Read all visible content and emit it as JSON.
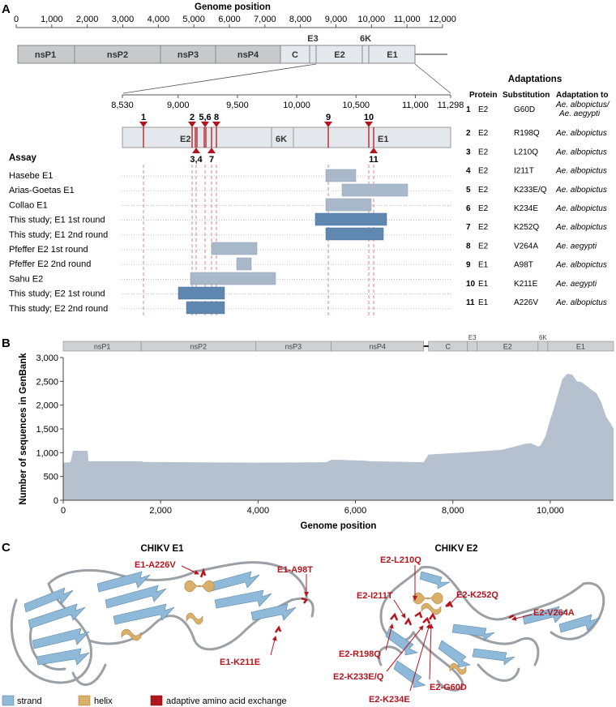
{
  "panels": {
    "a": "A",
    "b": "B",
    "c": "C"
  },
  "genome_axis": {
    "title": "Genome position",
    "ticks": [
      "0",
      "1,000",
      "2,000",
      "3,000",
      "4,000",
      "5,000",
      "6,000",
      "7,000",
      "8,000",
      "9,000",
      "10,000",
      "11,000",
      "12,000"
    ]
  },
  "genes": [
    "nsP1",
    "nsP2",
    "nsP3",
    "nsP4",
    "C",
    "E3",
    "E2",
    "6K",
    "E1"
  ],
  "zoom_axis": {
    "ticks": [
      "8,530",
      "9,000",
      "9,500",
      "10,000",
      "10,500",
      "11,000",
      "11,298"
    ]
  },
  "zoom_genes": {
    "e2": "E2",
    "k6": "6K",
    "e1": "E1"
  },
  "site_labels": [
    "1",
    "2",
    "5,6",
    "8",
    "9",
    "10",
    "3,4",
    "7",
    "11"
  ],
  "assay": {
    "heading": "Assay",
    "rows": [
      "Hasebe E1",
      "Arias-Goetas E1",
      "Collao E1",
      "This study; E1 1st round",
      "This study; E1 2nd round",
      "Pfeffer E2 1st round",
      "Pfeffer E2 2nd round",
      "Sahu E2",
      "This study; E2 1st round",
      "This study; E2 2nd round"
    ]
  },
  "adaptations": {
    "title": "Adaptations",
    "headers": {
      "protein": "Protein",
      "substitution": "Substitution",
      "adaptation": "Adaptation to"
    },
    "rows": [
      {
        "n": "1",
        "protein": "E2",
        "sub": "G60D",
        "to": "Ae. albopictus/",
        "to2": "Ae. aegypti"
      },
      {
        "n": "2",
        "protein": "E2",
        "sub": "R198Q",
        "to": "Ae. albopictus"
      },
      {
        "n": "3",
        "protein": "E2",
        "sub": "L210Q",
        "to": "Ae. albopictus"
      },
      {
        "n": "4",
        "protein": "E2",
        "sub": "I211T",
        "to": "Ae. albopictus"
      },
      {
        "n": "5",
        "protein": "E2",
        "sub": "K233E/Q",
        "to": "Ae. albopictus"
      },
      {
        "n": "6",
        "protein": "E2",
        "sub": "K234E",
        "to": "Ae. albopictus"
      },
      {
        "n": "7",
        "protein": "E2",
        "sub": "K252Q",
        "to": "Ae. albopictus"
      },
      {
        "n": "8",
        "protein": "E2",
        "sub": "V264A",
        "to": "Ae. aegypti"
      },
      {
        "n": "9",
        "protein": "E1",
        "sub": "A98T",
        "to": "Ae. albopictus"
      },
      {
        "n": "10",
        "protein": "E1",
        "sub": "K211E",
        "to": "Ae. aegypti"
      },
      {
        "n": "11",
        "protein": "E1",
        "sub": "A226V",
        "to": "Ae. albopictus"
      }
    ]
  },
  "chart_data": {
    "type": "area",
    "title": "",
    "xlabel": "Genome position",
    "ylabel": "Number of sequences in GenBank",
    "xlim": [
      0,
      11300
    ],
    "ylim": [
      0,
      3000
    ],
    "xticks": [
      "0",
      "2,000",
      "4,000",
      "6,000",
      "8,000",
      "10,000"
    ],
    "yticks": [
      "0",
      "500",
      "1,000",
      "1,500",
      "2,000",
      "2,500",
      "3,000"
    ],
    "gene_strip": [
      "nsP1",
      "nsP2",
      "nsP3",
      "nsP4",
      "C",
      "E3",
      "E2",
      "6K",
      "E1"
    ],
    "x": [
      0,
      150,
      200,
      500,
      520,
      1600,
      1650,
      4000,
      5400,
      5500,
      5700,
      6200,
      6300,
      7400,
      7500,
      8300,
      9000,
      9500,
      9600,
      9750,
      9800,
      9900,
      10000,
      10050,
      10150,
      10250,
      10350,
      10450,
      10550,
      10650,
      10750,
      10850,
      10950,
      11050,
      11150,
      11250,
      11300
    ],
    "values": [
      790,
      800,
      1040,
      1040,
      820,
      820,
      805,
      790,
      800,
      850,
      850,
      830,
      820,
      800,
      960,
      1010,
      1060,
      1190,
      1200,
      1130,
      1150,
      1340,
      1700,
      1850,
      2200,
      2550,
      2660,
      2640,
      2500,
      2480,
      2400,
      2320,
      2250,
      2050,
      1750,
      1600,
      1500
    ]
  },
  "structures": {
    "e1_title": "CHIKV E1",
    "e2_title": "CHIKV E2",
    "e1_labels": [
      "E1-A226V",
      "E1-A98T",
      "E1-K211E"
    ],
    "e2_labels": [
      "E2-L210Q",
      "E2-I211T",
      "E2-K252Q",
      "E2-V264A",
      "E2-R198Q",
      "E2-K233E/Q",
      "E2-G60D",
      "E2-K234E"
    ]
  },
  "legend": {
    "strand": "strand",
    "helix": "helix",
    "adaptive": "adaptive amino acid exchange"
  },
  "colors": {
    "gene_grey": "#c8c9ca",
    "struct_grey": "#e4e8ec",
    "red": "#b5151e",
    "assay_light": "#a9b9c9",
    "assay_dark": "#5f87b0",
    "area": "#b5c1cf",
    "strand": "#8fb9d8",
    "helix": "#d9b06a"
  }
}
